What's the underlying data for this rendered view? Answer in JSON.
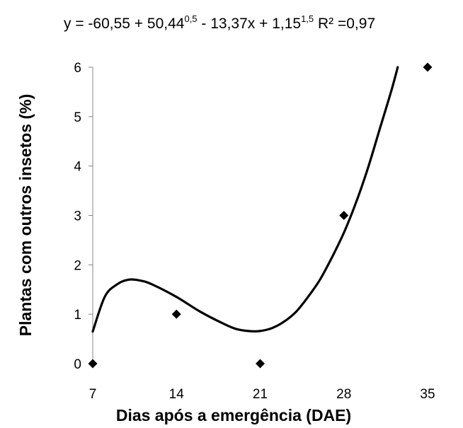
{
  "equation": {
    "text_1": "y = -60,55 + 50,44",
    "exp_1": "0,5",
    "text_2": " - 13,37x + 1,15",
    "exp_2": "1,5",
    "text_3": " R² =0,97"
  },
  "chart_data": {
    "type": "scatter",
    "xlabel": "Dias após a emergência (DAE)",
    "ylabel": "Plantas com outros insetos (%)",
    "x_ticks": [
      7,
      14,
      21,
      28,
      35
    ],
    "y_ticks": [
      0,
      1,
      2,
      3,
      4,
      5,
      6
    ],
    "xlim": [
      7,
      35
    ],
    "ylim": [
      0,
      6
    ],
    "grid": false,
    "points": [
      {
        "x": 7,
        "y": 0
      },
      {
        "x": 14,
        "y": 1
      },
      {
        "x": 21,
        "y": 0
      },
      {
        "x": 28,
        "y": 3
      },
      {
        "x": 35,
        "y": 6
      }
    ],
    "trendline": {
      "form": "y = a + b*x^0.5 + c*x + d*x^1.5",
      "coefficients": {
        "a": -60.55,
        "b": 50.44,
        "c": -13.37,
        "d": 1.15
      },
      "r2": 0.97,
      "curve": [
        {
          "x": 7,
          "y": 0.65
        },
        {
          "x": 8,
          "y": 1.35
        },
        {
          "x": 9,
          "y": 1.6
        },
        {
          "x": 10,
          "y": 1.7
        },
        {
          "x": 11,
          "y": 1.68
        },
        {
          "x": 12,
          "y": 1.6
        },
        {
          "x": 14,
          "y": 1.35
        },
        {
          "x": 16,
          "y": 1.05
        },
        {
          "x": 18,
          "y": 0.8
        },
        {
          "x": 19,
          "y": 0.7
        },
        {
          "x": 20,
          "y": 0.66
        },
        {
          "x": 21,
          "y": 0.66
        },
        {
          "x": 22,
          "y": 0.72
        },
        {
          "x": 23,
          "y": 0.85
        },
        {
          "x": 24,
          "y": 1.05
        },
        {
          "x": 25,
          "y": 1.35
        },
        {
          "x": 26,
          "y": 1.7
        },
        {
          "x": 27,
          "y": 2.15
        },
        {
          "x": 28,
          "y": 2.65
        },
        {
          "x": 29,
          "y": 3.25
        },
        {
          "x": 30,
          "y": 3.95
        },
        {
          "x": 31,
          "y": 4.75
        },
        {
          "x": 32,
          "y": 5.55
        },
        {
          "x": 32.5,
          "y": 6.0
        }
      ]
    }
  }
}
